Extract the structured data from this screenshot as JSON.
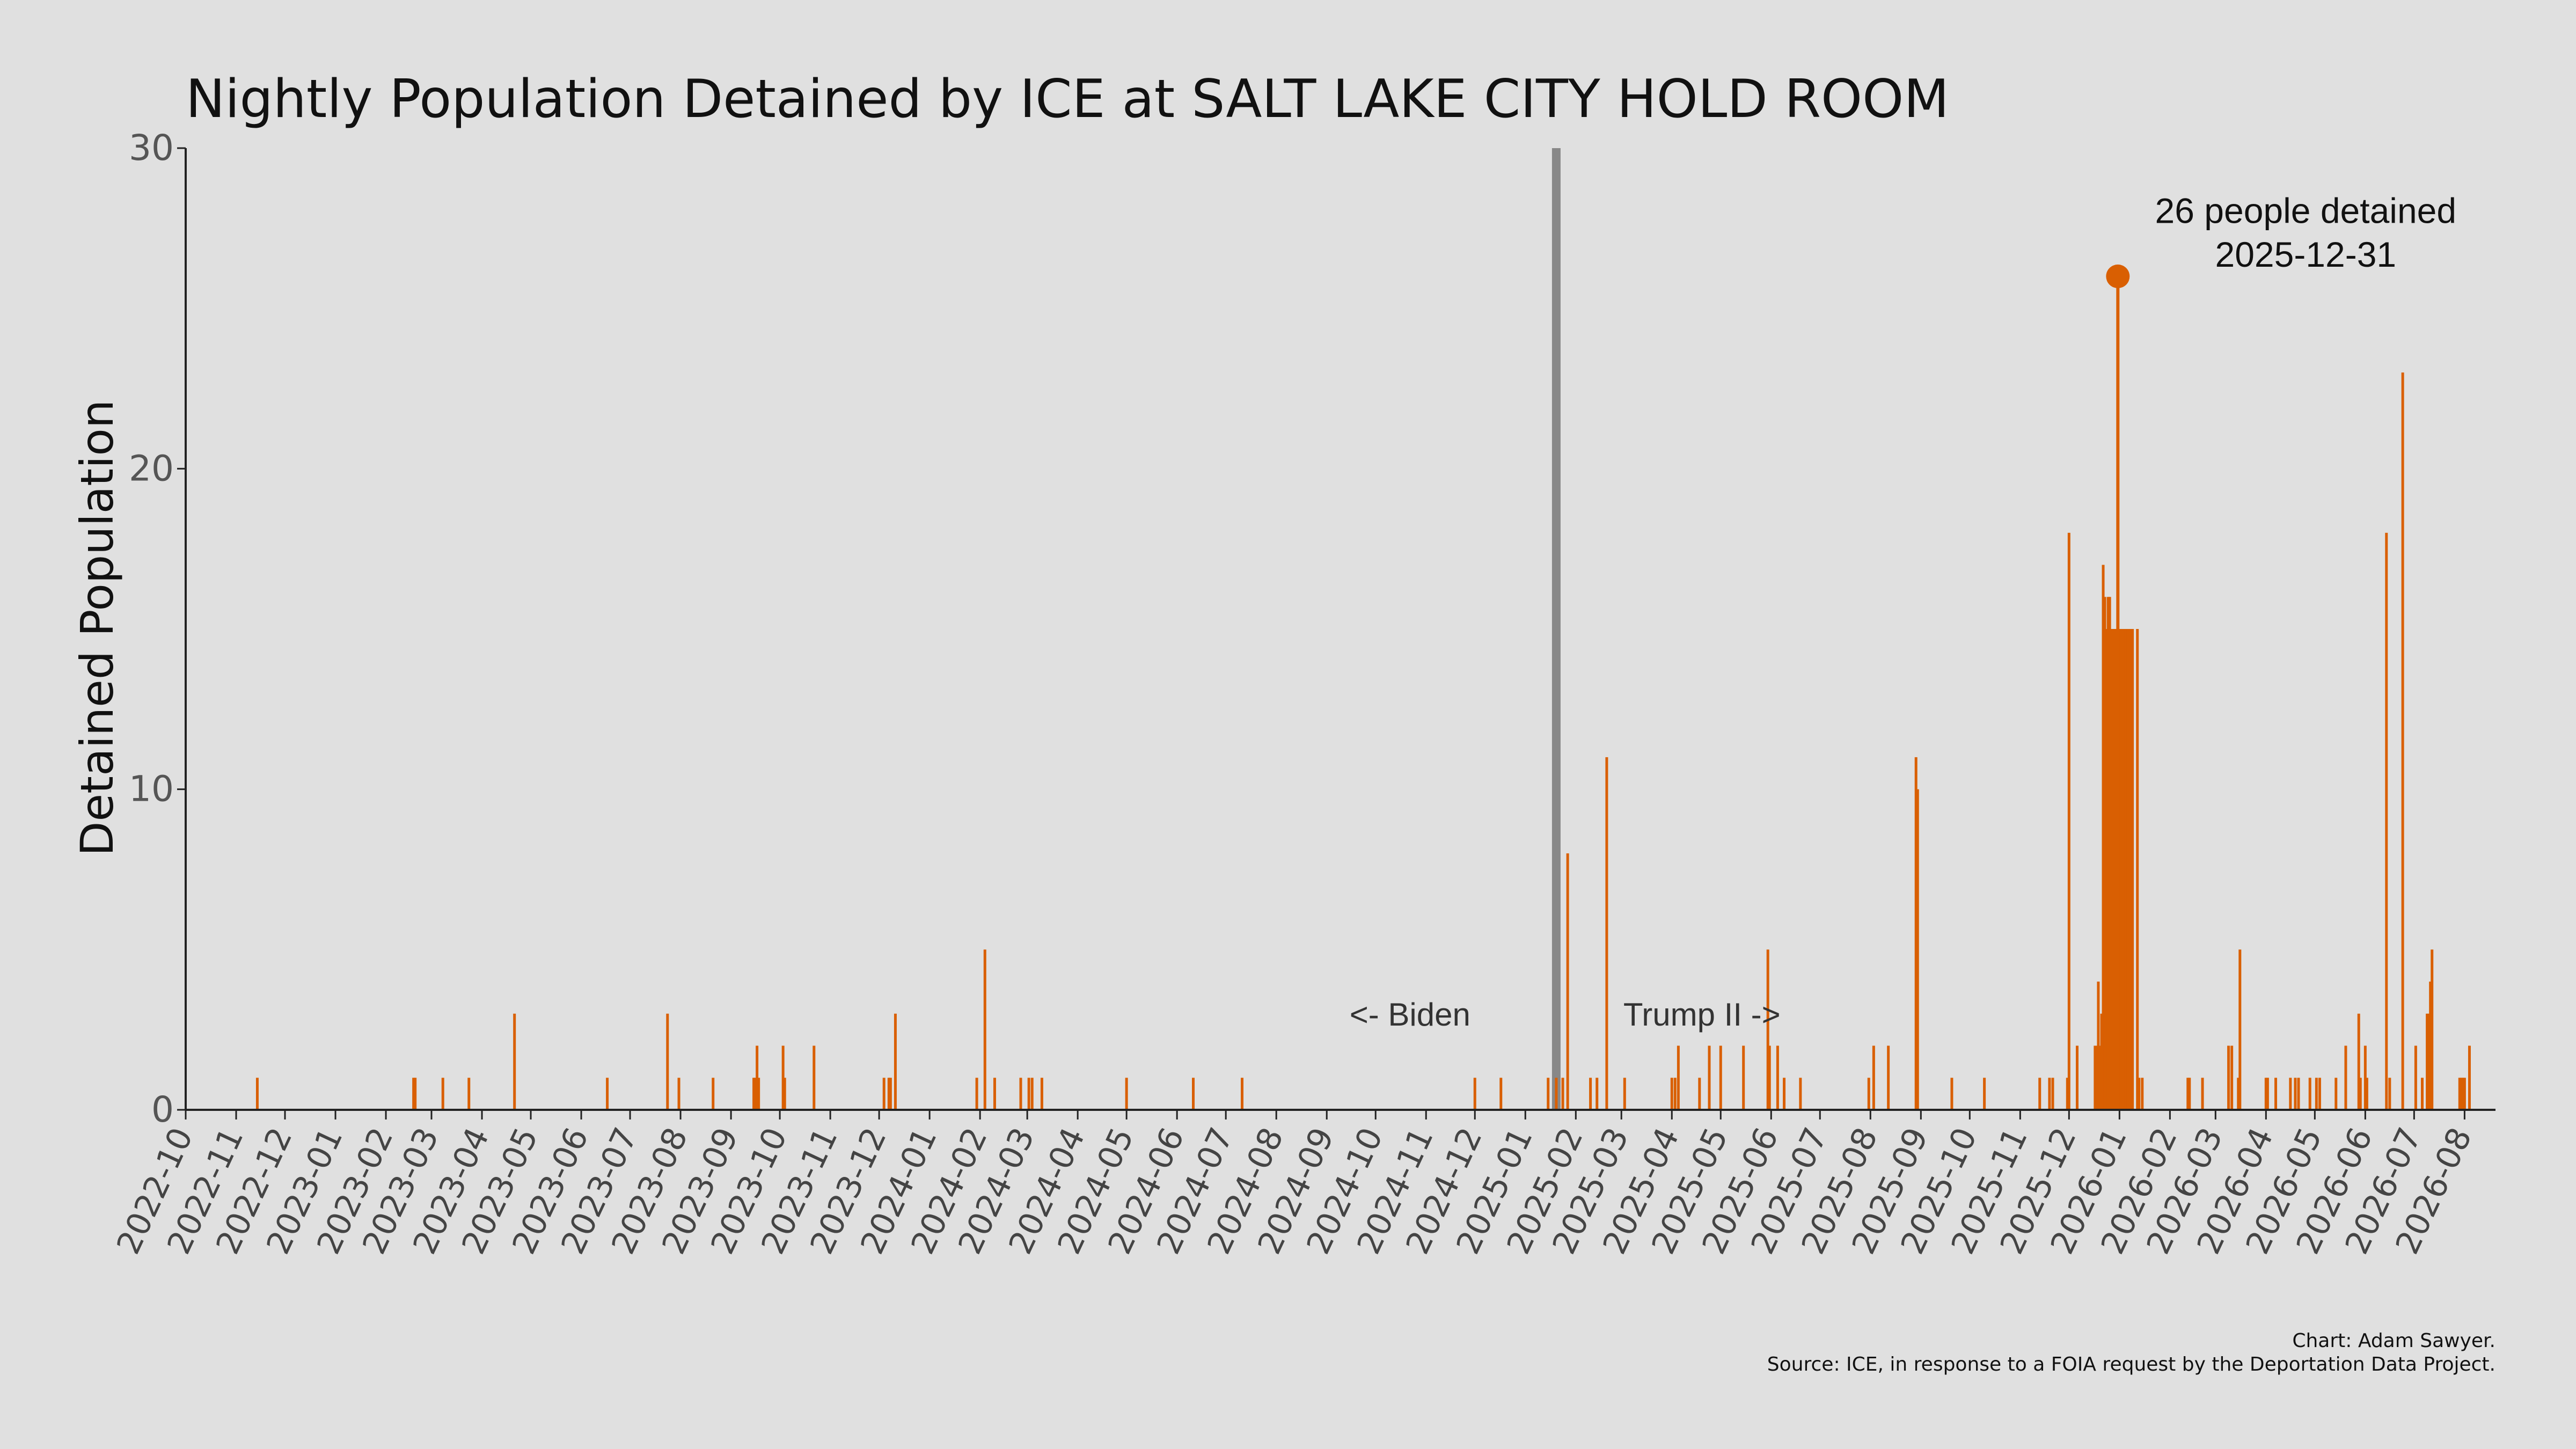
{
  "chart_data": {
    "type": "bar",
    "title": "Nightly Population Detained by ICE at SALT LAKE CITY HOLD ROOM",
    "ylabel": "Detained Population",
    "xlabel": "",
    "ylim": [
      0,
      30
    ],
    "yticks": [
      0,
      10,
      20,
      30
    ],
    "xlim": [
      "2022-10-01",
      "2026-08-20"
    ],
    "xtick_labels": [
      "2022-10",
      "2022-11",
      "2022-12",
      "2023-01",
      "2023-02",
      "2023-03",
      "2023-04",
      "2023-05",
      "2023-06",
      "2023-07",
      "2023-08",
      "2023-09",
      "2023-10",
      "2023-11",
      "2023-12",
      "2024-01",
      "2024-02",
      "2024-03",
      "2024-04",
      "2024-05",
      "2024-06",
      "2024-07",
      "2024-08",
      "2024-09",
      "2024-10",
      "2024-11",
      "2024-12",
      "2025-01",
      "2025-02",
      "2025-03",
      "2025-04",
      "2025-05",
      "2025-06",
      "2025-07",
      "2025-08",
      "2025-09",
      "2025-10",
      "2025-11",
      "2025-12",
      "2026-01",
      "2026-02",
      "2026-03",
      "2026-04",
      "2026-05",
      "2026-06",
      "2026-07",
      "2026-08"
    ],
    "bar_color": "#d95f02",
    "divider_color": "#888888",
    "grid": false,
    "divider_date": "2025-01-20",
    "labels": {
      "before": "<- Biden",
      "after": "Trump II ->"
    },
    "peak": {
      "date": "2025-12-31",
      "value": 26,
      "line1": "26 people detained",
      "line2": "2025-12-31"
    },
    "points": [
      [
        "2022-11-14",
        1
      ],
      [
        "2023-02-18",
        1
      ],
      [
        "2023-02-19",
        1
      ],
      [
        "2023-03-08",
        1
      ],
      [
        "2023-03-24",
        1
      ],
      [
        "2023-04-21",
        3
      ],
      [
        "2023-06-17",
        1
      ],
      [
        "2023-07-24",
        3
      ],
      [
        "2023-07-31",
        1
      ],
      [
        "2023-08-21",
        1
      ],
      [
        "2023-09-15",
        1
      ],
      [
        "2023-09-16",
        1
      ],
      [
        "2023-09-17",
        2
      ],
      [
        "2023-09-18",
        1
      ],
      [
        "2023-10-03",
        2
      ],
      [
        "2023-10-04",
        1
      ],
      [
        "2023-10-22",
        2
      ],
      [
        "2023-12-04",
        1
      ],
      [
        "2023-12-07",
        1
      ],
      [
        "2023-12-08",
        1
      ],
      [
        "2023-12-11",
        3
      ],
      [
        "2024-01-30",
        1
      ],
      [
        "2024-02-04",
        5
      ],
      [
        "2024-02-10",
        1
      ],
      [
        "2024-02-26",
        1
      ],
      [
        "2024-03-02",
        1
      ],
      [
        "2024-03-04",
        1
      ],
      [
        "2024-03-10",
        1
      ],
      [
        "2024-05-01",
        1
      ],
      [
        "2024-06-11",
        1
      ],
      [
        "2024-07-11",
        1
      ],
      [
        "2024-12-01",
        1
      ],
      [
        "2024-12-17",
        1
      ],
      [
        "2025-01-15",
        1
      ],
      [
        "2025-01-20",
        1
      ],
      [
        "2025-01-24",
        1
      ],
      [
        "2025-01-27",
        8
      ],
      [
        "2025-02-10",
        1
      ],
      [
        "2025-02-14",
        1
      ],
      [
        "2025-02-20",
        11
      ],
      [
        "2025-03-03",
        1
      ],
      [
        "2025-04-01",
        1
      ],
      [
        "2025-04-03",
        1
      ],
      [
        "2025-04-05",
        2
      ],
      [
        "2025-04-18",
        1
      ],
      [
        "2025-04-24",
        2
      ],
      [
        "2025-05-01",
        2
      ],
      [
        "2025-05-15",
        2
      ],
      [
        "2025-05-30",
        5
      ],
      [
        "2025-05-31",
        2
      ],
      [
        "2025-06-05",
        2
      ],
      [
        "2025-06-09",
        1
      ],
      [
        "2025-06-19",
        1
      ],
      [
        "2025-07-31",
        1
      ],
      [
        "2025-08-03",
        2
      ],
      [
        "2025-08-12",
        2
      ],
      [
        "2025-08-29",
        11
      ],
      [
        "2025-08-30",
        10
      ],
      [
        "2025-09-20",
        1
      ],
      [
        "2025-10-10",
        1
      ],
      [
        "2025-11-13",
        1
      ],
      [
        "2025-11-19",
        1
      ],
      [
        "2025-11-21",
        1
      ],
      [
        "2025-11-30",
        1
      ],
      [
        "2025-12-01",
        18
      ],
      [
        "2025-12-06",
        2
      ],
      [
        "2025-12-17",
        2
      ],
      [
        "2025-12-18",
        2
      ],
      [
        "2025-12-19",
        4
      ],
      [
        "2025-12-20",
        2
      ],
      [
        "2025-12-21",
        3
      ],
      [
        "2025-12-22",
        17
      ],
      [
        "2025-12-23",
        16
      ],
      [
        "2025-12-24",
        15
      ],
      [
        "2025-12-25",
        16
      ],
      [
        "2025-12-26",
        16
      ],
      [
        "2025-12-27",
        15
      ],
      [
        "2025-12-28",
        15
      ],
      [
        "2025-12-29",
        15
      ],
      [
        "2025-12-30",
        15
      ],
      [
        "2025-12-31",
        26
      ],
      [
        "2026-01-01",
        15
      ],
      [
        "2026-01-02",
        15
      ],
      [
        "2026-01-03",
        15
      ],
      [
        "2026-01-04",
        15
      ],
      [
        "2026-01-05",
        15
      ],
      [
        "2026-01-06",
        15
      ],
      [
        "2026-01-07",
        15
      ],
      [
        "2026-01-08",
        15
      ],
      [
        "2026-01-09",
        15
      ],
      [
        "2026-01-12",
        15
      ],
      [
        "2026-01-13",
        1
      ],
      [
        "2026-01-15",
        1
      ],
      [
        "2026-02-12",
        1
      ],
      [
        "2026-02-13",
        1
      ],
      [
        "2026-02-21",
        1
      ],
      [
        "2026-03-09",
        2
      ],
      [
        "2026-03-11",
        2
      ],
      [
        "2026-03-15",
        1
      ],
      [
        "2026-03-16",
        5
      ],
      [
        "2026-04-01",
        1
      ],
      [
        "2026-04-02",
        1
      ],
      [
        "2026-04-07",
        1
      ],
      [
        "2026-04-16",
        1
      ],
      [
        "2026-04-19",
        1
      ],
      [
        "2026-04-21",
        1
      ],
      [
        "2026-04-28",
        1
      ],
      [
        "2026-05-02",
        1
      ],
      [
        "2026-05-04",
        1
      ],
      [
        "2026-05-14",
        1
      ],
      [
        "2026-05-20",
        2
      ],
      [
        "2026-05-28",
        3
      ],
      [
        "2026-05-29",
        1
      ],
      [
        "2026-06-01",
        2
      ],
      [
        "2026-06-02",
        1
      ],
      [
        "2026-06-14",
        18
      ],
      [
        "2026-06-16",
        1
      ],
      [
        "2026-06-24",
        23
      ],
      [
        "2026-07-02",
        2
      ],
      [
        "2026-07-06",
        1
      ],
      [
        "2026-07-09",
        3
      ],
      [
        "2026-07-10",
        3
      ],
      [
        "2026-07-11",
        4
      ],
      [
        "2026-07-12",
        5
      ],
      [
        "2026-07-29",
        1
      ],
      [
        "2026-07-30",
        1
      ],
      [
        "2026-07-31",
        1
      ],
      [
        "2026-08-01",
        1
      ],
      [
        "2026-08-04",
        2
      ]
    ]
  },
  "credits": {
    "line1": "Chart: Adam Sawyer.",
    "line2": "Source: ICE, in response to a FOIA request by the Deportation Data Project."
  }
}
